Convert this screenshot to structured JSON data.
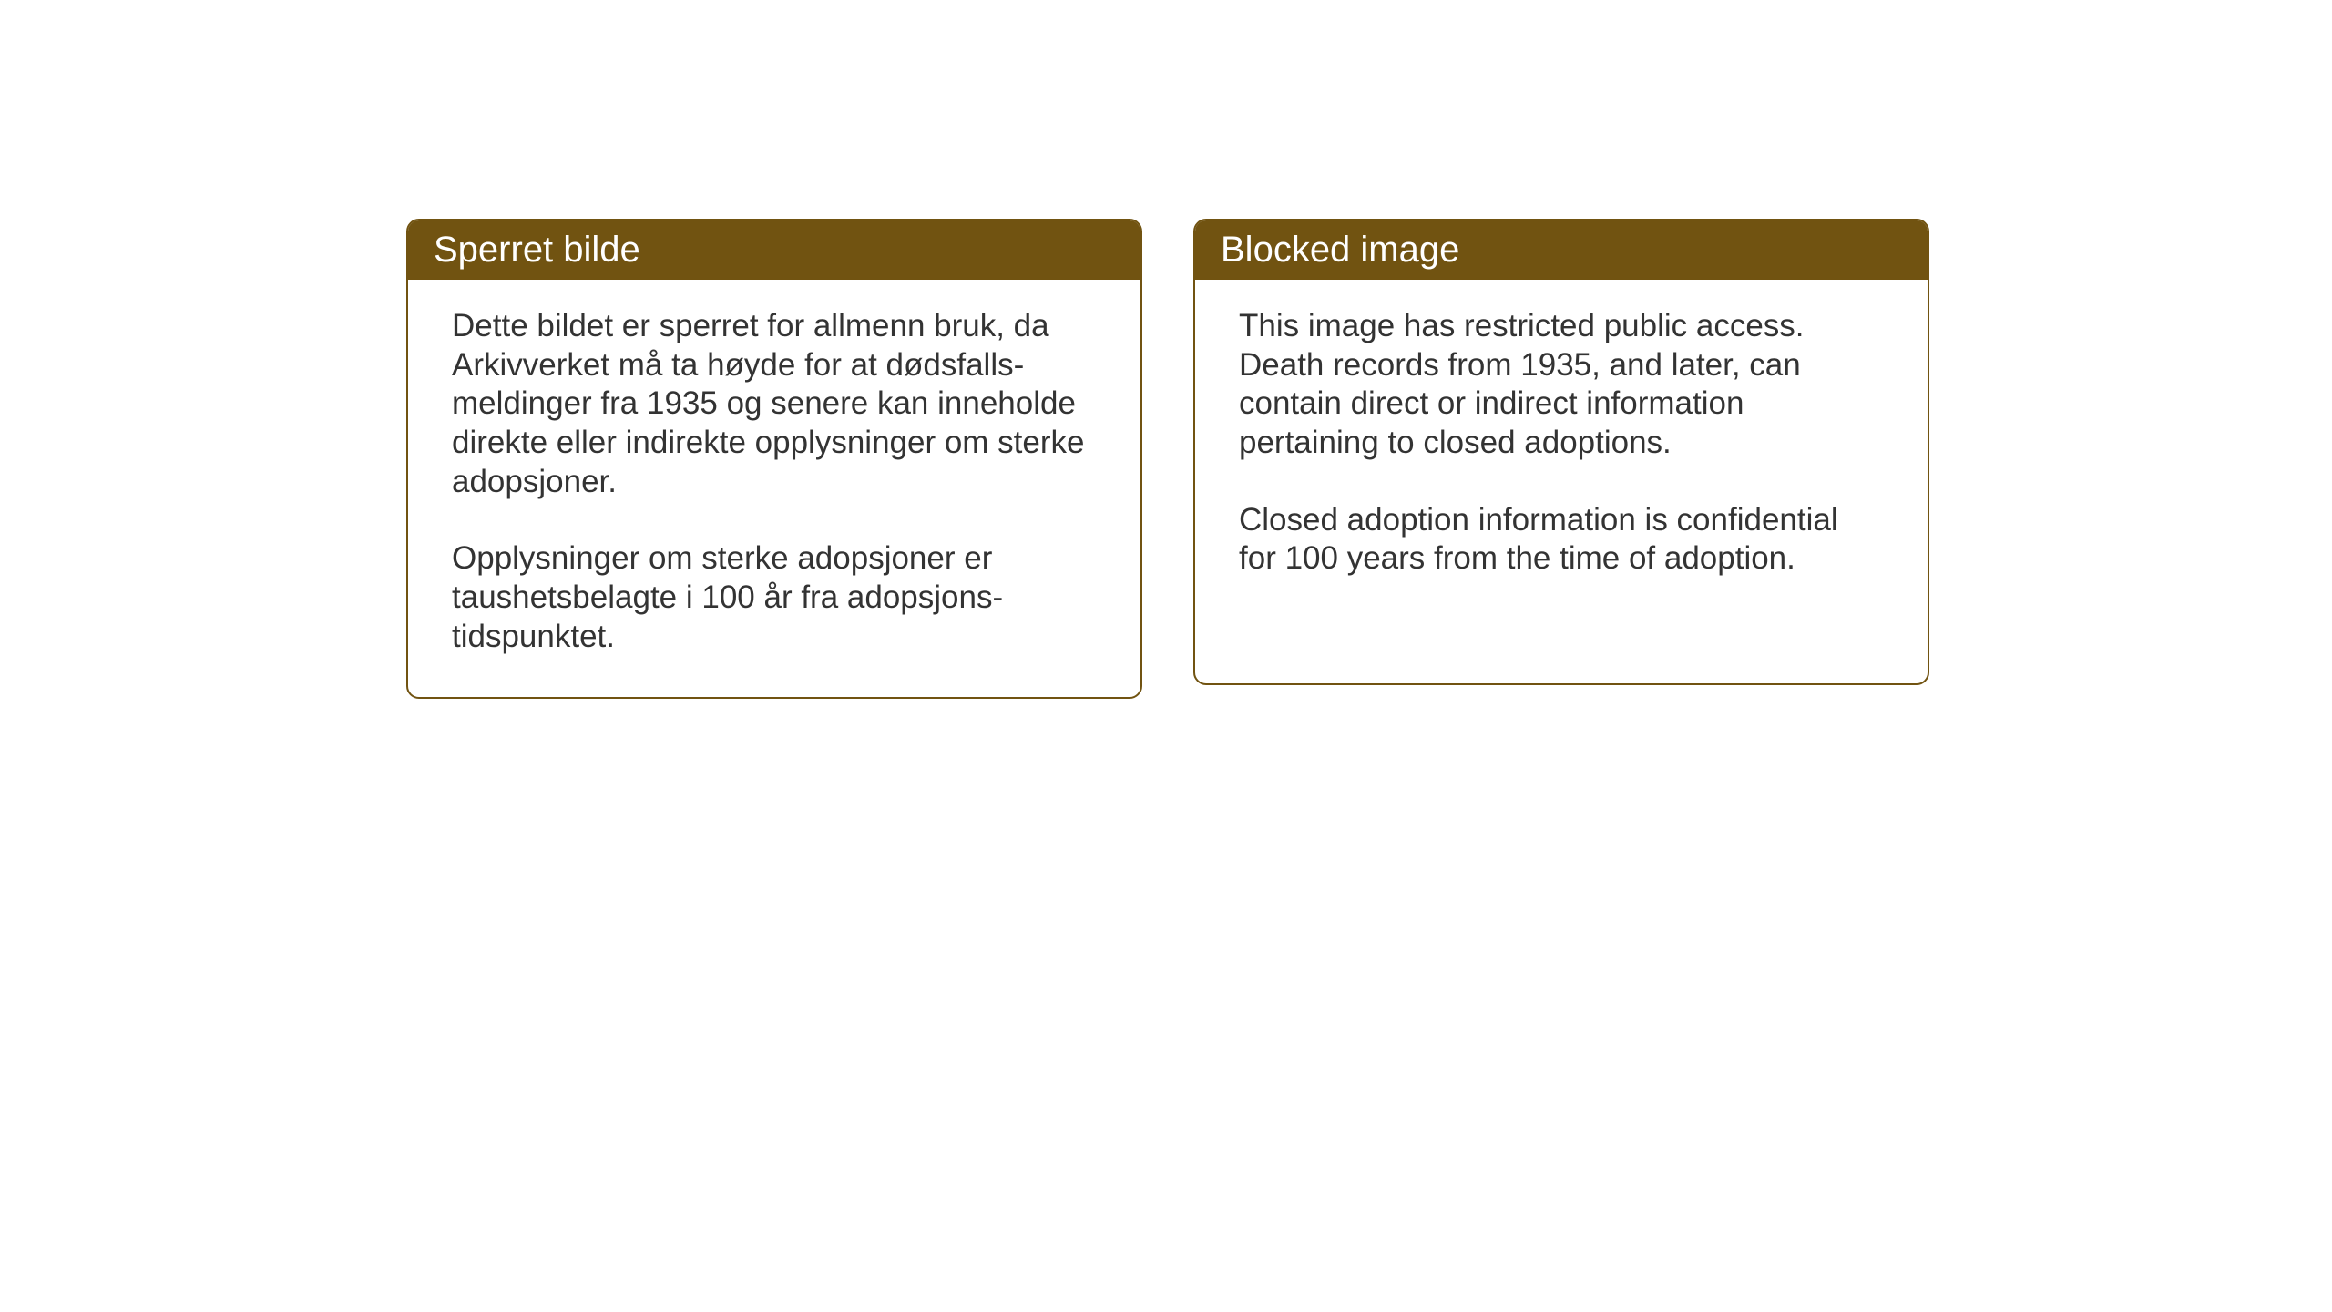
{
  "colors": {
    "header_background": "#715311",
    "header_text": "#ffffff",
    "border": "#715311",
    "body_text": "#333333",
    "page_background": "#ffffff"
  },
  "typography": {
    "header_fontsize": 40,
    "body_fontsize": 35
  },
  "cards": {
    "norwegian": {
      "title": "Sperret bilde",
      "paragraph1": "Dette bildet er sperret for allmenn bruk, da Arkivverket må ta høyde for at dødsfalls-meldinger fra 1935 og senere kan inneholde direkte eller indirekte opplysninger om sterke adopsjoner.",
      "paragraph2": "Opplysninger om sterke adopsjoner er taushetsbelagte i 100 år fra adopsjons-tidspunktet."
    },
    "english": {
      "title": "Blocked image",
      "paragraph1": "This image has restricted public access. Death records from 1935, and later, can contain direct or indirect information pertaining to closed adoptions.",
      "paragraph2": "Closed adoption information is confidential for 100 years from the time of adoption."
    }
  }
}
